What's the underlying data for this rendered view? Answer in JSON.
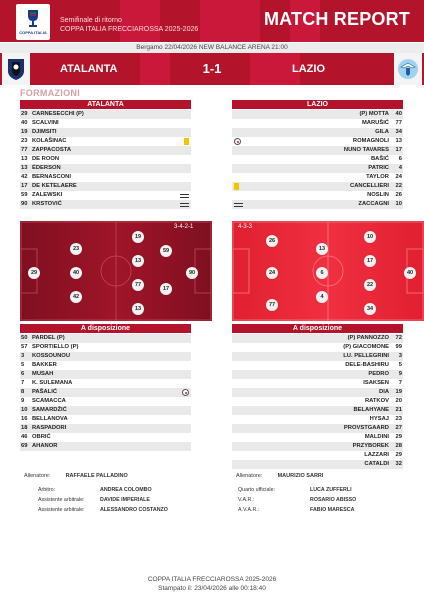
{
  "header": {
    "title": "MATCH REPORT",
    "competition_round": "Semifinale di ritorno",
    "competition_season": "COPPA ITALIA FRECCIAROSSA 2025-2026",
    "logo_text": "COPPA ITALIA"
  },
  "venue": "Bergamo 22/04/2026 NEW BALANCE ARENA 21:00",
  "match": {
    "home_team": "ATALANTA",
    "away_team": "LAZIO",
    "score": "1-1"
  },
  "section_title": "FORMAZIONI",
  "home": {
    "name": "ATALANTA",
    "starters": [
      {
        "num": "29",
        "name": "CARNESECCHI (P)",
        "event": ""
      },
      {
        "num": "40",
        "name": "SCALVINI",
        "event": ""
      },
      {
        "num": "19",
        "name": "DJIMSITI",
        "event": ""
      },
      {
        "num": "23",
        "name": "KOLAŠINAC",
        "event": "yellow-card"
      },
      {
        "num": "77",
        "name": "ZAPPACOSTA",
        "event": ""
      },
      {
        "num": "13",
        "name": "DE ROON",
        "event": ""
      },
      {
        "num": "13",
        "name": "ÉDERSON",
        "event": ""
      },
      {
        "num": "42",
        "name": "BERNASCONI",
        "event": ""
      },
      {
        "num": "17",
        "name": "DE KETELAERE",
        "event": ""
      },
      {
        "num": "59",
        "name": "ZALEWSKI",
        "event": "substitution"
      },
      {
        "num": "90",
        "name": "KRSTOVIĆ",
        "event": "substitution"
      }
    ],
    "formation": "3-4-2-1",
    "subs_title": "A disposizione",
    "subs": [
      {
        "num": "50",
        "name": "PARDEL (P)",
        "event": ""
      },
      {
        "num": "57",
        "name": "SPORTIELLO (P)",
        "event": ""
      },
      {
        "num": "3",
        "name": "KOSSOUNOU",
        "event": ""
      },
      {
        "num": "5",
        "name": "BAKKER",
        "event": ""
      },
      {
        "num": "6",
        "name": "MUSAH",
        "event": ""
      },
      {
        "num": "7",
        "name": "K. SULEMANA",
        "event": ""
      },
      {
        "num": "8",
        "name": "PAŠALIĆ",
        "event": "goal"
      },
      {
        "num": "9",
        "name": "SCAMACCA",
        "event": ""
      },
      {
        "num": "10",
        "name": "SAMARDŽIĆ",
        "event": ""
      },
      {
        "num": "16",
        "name": "BELLANOVA",
        "event": ""
      },
      {
        "num": "18",
        "name": "RASPADORI",
        "event": ""
      },
      {
        "num": "46",
        "name": "OBRIĆ",
        "event": ""
      },
      {
        "num": "69",
        "name": "AHANOR",
        "event": ""
      }
    ],
    "coach_label": "Allenatore:",
    "coach": "RAFFAELE PALLADINO"
  },
  "away": {
    "name": "LAZIO",
    "starters": [
      {
        "num": "40",
        "name": "(P) MOTTA",
        "event": ""
      },
      {
        "num": "77",
        "name": "MARUŠIĆ",
        "event": ""
      },
      {
        "num": "34",
        "name": "GILA",
        "event": ""
      },
      {
        "num": "13",
        "name": "ROMAGNOLI",
        "event": "goal"
      },
      {
        "num": "17",
        "name": "NUNO TAVARES",
        "event": ""
      },
      {
        "num": "6",
        "name": "BAŠIĆ",
        "event": ""
      },
      {
        "num": "4",
        "name": "PATRIC",
        "event": ""
      },
      {
        "num": "24",
        "name": "TAYLOR",
        "event": ""
      },
      {
        "num": "22",
        "name": "CANCELLIERI",
        "event": "yellow-card"
      },
      {
        "num": "26",
        "name": "NOSLIN",
        "event": ""
      },
      {
        "num": "10",
        "name": "ZACCAGNI",
        "event": "substitution"
      }
    ],
    "formation": "4-3-3",
    "subs_title": "A disposizione",
    "subs": [
      {
        "num": "72",
        "name": "(P) PANNOZZO",
        "event": ""
      },
      {
        "num": "99",
        "name": "(P) GIACOMONE",
        "event": ""
      },
      {
        "num": "3",
        "name": "LU. PELLEGRINI",
        "event": ""
      },
      {
        "num": "5",
        "name": "DELE-BASHIRU",
        "event": ""
      },
      {
        "num": "9",
        "name": "PEDRO",
        "event": ""
      },
      {
        "num": "7",
        "name": "ISAKSEN",
        "event": ""
      },
      {
        "num": "19",
        "name": "DIA",
        "event": ""
      },
      {
        "num": "20",
        "name": "RATKOV",
        "event": ""
      },
      {
        "num": "21",
        "name": "BELAHYANE",
        "event": ""
      },
      {
        "num": "23",
        "name": "HYSAJ",
        "event": ""
      },
      {
        "num": "27",
        "name": "PROVSTGAARD",
        "event": ""
      },
      {
        "num": "29",
        "name": "MALDINI",
        "event": ""
      },
      {
        "num": "28",
        "name": "PRZYBOREK",
        "event": ""
      },
      {
        "num": "29",
        "name": "LAZZARI",
        "event": ""
      },
      {
        "num": "32",
        "name": "CATALDI",
        "event": ""
      }
    ],
    "coach_label": "Allenatore:",
    "coach": "MAURIZIO SARRI"
  },
  "officials_left": [
    {
      "label": "Arbitro:",
      "value": "ANDREA COLOMBO"
    },
    {
      "label": "Assistente arbitrale:",
      "value": "DAVIDE IMPERIALE"
    },
    {
      "label": "Assistente arbitrale:",
      "value": "ALESSANDRO COSTANZO"
    }
  ],
  "officials_right": [
    {
      "label": "Quarto ufficiale:",
      "value": "LUCA ZUFFERLI"
    },
    {
      "label": "V.A.R.:",
      "value": "ROSARIO ABISSO"
    },
    {
      "label": "A.V.A.R.:",
      "value": "FABIO MARESCA"
    }
  ],
  "footer": {
    "competition": "COPPA ITALIA FRECCIAROSSA 2025-2026",
    "printed": "Stampato il: 23/04/2026 alle 00:18:40"
  },
  "colors": {
    "primary": "#b3142b",
    "accent": "#c9183a",
    "card": "#f2c500"
  }
}
